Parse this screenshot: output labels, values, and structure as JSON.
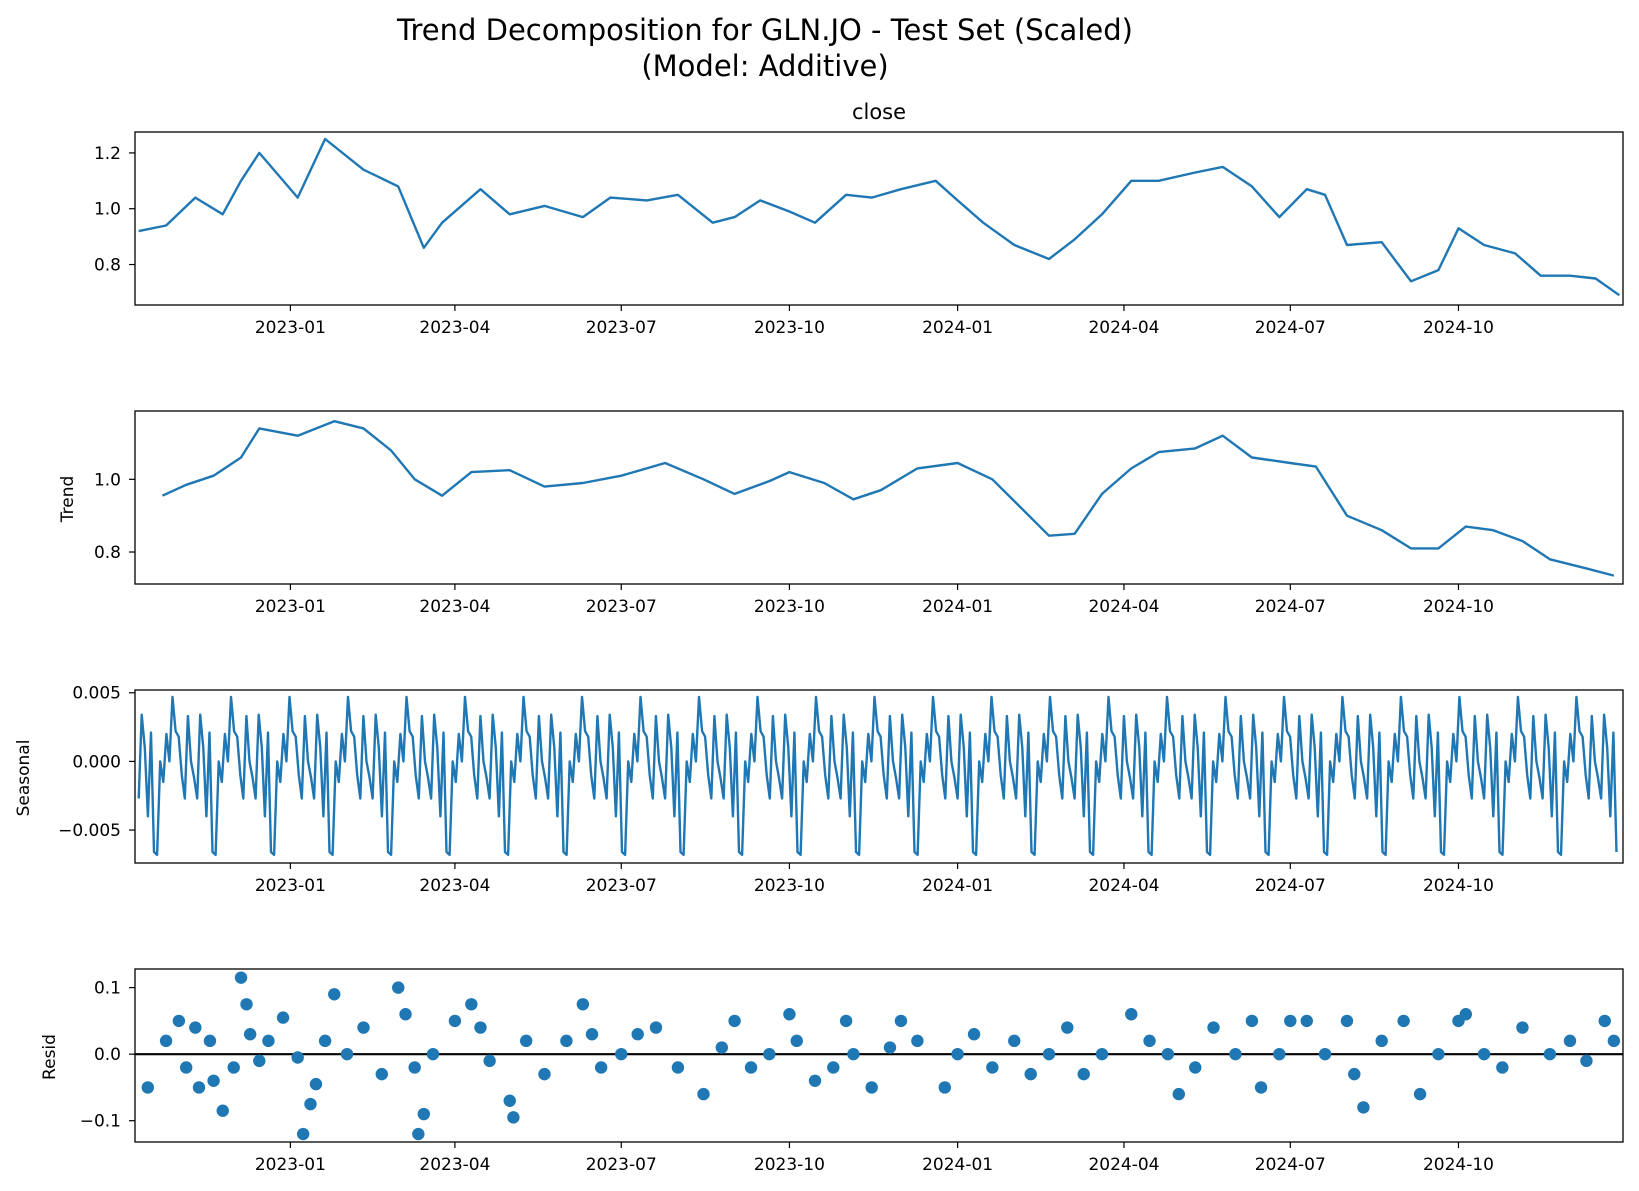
{
  "figure": {
    "title_line1": "Trend Decomposition for GLN.JO - Test Set (Scaled)",
    "title_line2": "(Model: Additive)"
  },
  "colors": {
    "series": "#1f77b4",
    "zero_line": "#000000",
    "axes": "#000000"
  },
  "chart_data": [
    {
      "type": "line",
      "title": "close",
      "ylabel": "",
      "x_range": [
        "2022-10-08",
        "2024-12-30"
      ],
      "x_ticks": [
        "2023-01",
        "2023-04",
        "2023-07",
        "2023-10",
        "2024-01",
        "2024-04",
        "2024-07",
        "2024-10"
      ],
      "ylim": [
        0.655,
        1.275
      ],
      "y_ticks": [
        "0.8",
        "1.0",
        "1.2"
      ],
      "y_tick_values": [
        0.8,
        1.0,
        1.2
      ],
      "series": [
        {
          "x": [
            "2022-10-10",
            "2022-10-25",
            "2022-11-10",
            "2022-11-25",
            "2022-12-05",
            "2022-12-15",
            "2023-01-05",
            "2023-01-20",
            "2023-02-10",
            "2023-03-01",
            "2023-03-15",
            "2023-03-25",
            "2023-04-15",
            "2023-05-01",
            "2023-05-20",
            "2023-06-10",
            "2023-06-25",
            "2023-07-15",
            "2023-08-01",
            "2023-08-20",
            "2023-09-01",
            "2023-09-15",
            "2023-10-01",
            "2023-10-15",
            "2023-11-01",
            "2023-11-15",
            "2023-12-01",
            "2023-12-20",
            "2024-01-01",
            "2024-01-15",
            "2024-02-01",
            "2024-02-20",
            "2024-03-05",
            "2024-03-20",
            "2024-04-05",
            "2024-04-20",
            "2024-05-10",
            "2024-05-25",
            "2024-06-10",
            "2024-06-25",
            "2024-07-10",
            "2024-07-20",
            "2024-08-01",
            "2024-08-20",
            "2024-09-05",
            "2024-09-20",
            "2024-10-01",
            "2024-10-15",
            "2024-11-01",
            "2024-11-15",
            "2024-12-01",
            "2024-12-15",
            "2024-12-28"
          ],
          "y": [
            0.92,
            0.94,
            1.04,
            0.98,
            1.1,
            1.2,
            1.04,
            1.25,
            1.14,
            1.08,
            0.86,
            0.95,
            1.07,
            0.98,
            1.01,
            0.97,
            1.04,
            1.03,
            1.05,
            0.95,
            0.97,
            1.03,
            0.99,
            0.95,
            1.05,
            1.04,
            1.07,
            1.1,
            1.03,
            0.95,
            0.87,
            0.82,
            0.89,
            0.98,
            1.1,
            1.1,
            1.13,
            1.15,
            1.08,
            0.97,
            1.07,
            1.05,
            0.87,
            0.88,
            0.74,
            0.78,
            0.93,
            0.87,
            0.84,
            0.76,
            0.76,
            0.75,
            0.69
          ]
        }
      ]
    },
    {
      "type": "line",
      "title": "",
      "ylabel": "Trend",
      "x_range": [
        "2022-10-08",
        "2024-12-30"
      ],
      "x_ticks": [
        "2023-01",
        "2023-04",
        "2023-07",
        "2023-10",
        "2024-01",
        "2024-04",
        "2024-07",
        "2024-10"
      ],
      "ylim": [
        0.712,
        1.188
      ],
      "y_ticks": [
        "0.8",
        "1.0"
      ],
      "y_tick_values": [
        0.8,
        1.0
      ],
      "series": [
        {
          "x": [
            "2022-10-23",
            "2022-11-05",
            "2022-11-20",
            "2022-12-05",
            "2022-12-15",
            "2023-01-05",
            "2023-01-25",
            "2023-02-10",
            "2023-02-25",
            "2023-03-10",
            "2023-03-25",
            "2023-04-10",
            "2023-05-01",
            "2023-05-20",
            "2023-06-10",
            "2023-07-01",
            "2023-07-25",
            "2023-08-15",
            "2023-09-01",
            "2023-09-20",
            "2023-10-01",
            "2023-10-20",
            "2023-11-05",
            "2023-11-20",
            "2023-12-10",
            "2024-01-01",
            "2024-01-20",
            "2024-02-05",
            "2024-02-20",
            "2024-03-05",
            "2024-03-20",
            "2024-04-05",
            "2024-04-20",
            "2024-05-10",
            "2024-05-25",
            "2024-06-10",
            "2024-07-01",
            "2024-07-15",
            "2024-08-01",
            "2024-08-20",
            "2024-09-05",
            "2024-09-20",
            "2024-10-05",
            "2024-10-20",
            "2024-11-05",
            "2024-11-20",
            "2024-12-10",
            "2024-12-25"
          ],
          "y": [
            0.955,
            0.985,
            1.01,
            1.06,
            1.14,
            1.12,
            1.16,
            1.14,
            1.08,
            1.0,
            0.955,
            1.02,
            1.025,
            0.98,
            0.99,
            1.01,
            1.045,
            1.0,
            0.96,
            0.995,
            1.02,
            0.99,
            0.945,
            0.97,
            1.03,
            1.045,
            1.0,
            0.92,
            0.845,
            0.85,
            0.96,
            1.03,
            1.075,
            1.085,
            1.12,
            1.06,
            1.045,
            1.035,
            0.9,
            0.86,
            0.81,
            0.81,
            0.87,
            0.86,
            0.83,
            0.78,
            0.755,
            0.735
          ]
        }
      ]
    },
    {
      "type": "line",
      "title": "",
      "ylabel": "Seasonal",
      "x_range": [
        "2022-10-08",
        "2024-12-30"
      ],
      "x_ticks": [
        "2023-01",
        "2023-04",
        "2023-07",
        "2023-10",
        "2024-01",
        "2024-04",
        "2024-07",
        "2024-10"
      ],
      "ylim": [
        -0.0074,
        0.0052
      ],
      "y_ticks": [
        "0.005",
        "0.000",
        "−0.005"
      ],
      "y_tick_values": [
        0.005,
        0.0,
        -0.005
      ],
      "pattern": {
        "start": "2022-10-10",
        "end": "2024-12-28",
        "period_days": 32,
        "cycle_values": [
          -0.0027,
          0.0034,
          0.001,
          -0.004,
          0.0021,
          -0.0066,
          -0.0068,
          0.0,
          -0.0015,
          0.002,
          0.0,
          0.0047,
          0.0022,
          0.0018,
          -0.001,
          -0.0027,
          0.0033,
          0.0,
          -0.0012
        ]
      }
    },
    {
      "type": "scatter",
      "title": "",
      "ylabel": "Resid",
      "x_range": [
        "2022-10-08",
        "2024-12-30"
      ],
      "x_ticks": [
        "2023-01",
        "2023-04",
        "2023-07",
        "2023-10",
        "2024-01",
        "2024-04",
        "2024-07",
        "2024-10"
      ],
      "ylim": [
        -0.132,
        0.128
      ],
      "y_ticks": [
        "0.1",
        "0.0",
        "−0.1"
      ],
      "y_tick_values": [
        0.1,
        0.0,
        -0.1
      ],
      "zero_line": 0.0,
      "series": [
        {
          "x": [
            "2022-10-15",
            "2022-10-25",
            "2022-11-01",
            "2022-11-05",
            "2022-11-10",
            "2022-11-12",
            "2022-11-18",
            "2022-11-20",
            "2022-11-25",
            "2022-12-01",
            "2022-12-05",
            "2022-12-08",
            "2022-12-10",
            "2022-12-15",
            "2022-12-20",
            "2022-12-28",
            "2023-01-05",
            "2023-01-08",
            "2023-01-12",
            "2023-01-15",
            "2023-01-20",
            "2023-01-25",
            "2023-02-01",
            "2023-02-10",
            "2023-02-20",
            "2023-03-01",
            "2023-03-05",
            "2023-03-10",
            "2023-03-12",
            "2023-03-15",
            "2023-03-20",
            "2023-04-01",
            "2023-04-10",
            "2023-04-15",
            "2023-04-20",
            "2023-05-01",
            "2023-05-03",
            "2023-05-10",
            "2023-05-20",
            "2023-06-01",
            "2023-06-10",
            "2023-06-15",
            "2023-06-20",
            "2023-07-01",
            "2023-07-10",
            "2023-07-20",
            "2023-08-01",
            "2023-08-15",
            "2023-08-25",
            "2023-09-01",
            "2023-09-10",
            "2023-09-20",
            "2023-10-01",
            "2023-10-05",
            "2023-10-15",
            "2023-10-25",
            "2023-11-01",
            "2023-11-05",
            "2023-11-15",
            "2023-11-25",
            "2023-12-01",
            "2023-12-10",
            "2023-12-25",
            "2024-01-01",
            "2024-01-10",
            "2024-01-20",
            "2024-02-01",
            "2024-02-10",
            "2024-02-20",
            "2024-03-01",
            "2024-03-10",
            "2024-03-20",
            "2024-04-05",
            "2024-04-15",
            "2024-04-25",
            "2024-05-01",
            "2024-05-10",
            "2024-05-20",
            "2024-06-01",
            "2024-06-10",
            "2024-06-15",
            "2024-06-25",
            "2024-07-01",
            "2024-07-10",
            "2024-07-20",
            "2024-08-01",
            "2024-08-05",
            "2024-08-10",
            "2024-08-20",
            "2024-09-01",
            "2024-09-10",
            "2024-09-20",
            "2024-10-01",
            "2024-10-05",
            "2024-10-15",
            "2024-10-25",
            "2024-11-05",
            "2024-11-20",
            "2024-12-01",
            "2024-12-10",
            "2024-12-20",
            "2024-12-25"
          ],
          "y": [
            -0.05,
            0.02,
            0.05,
            -0.02,
            0.04,
            -0.05,
            0.02,
            -0.04,
            -0.085,
            -0.02,
            0.115,
            0.075,
            0.03,
            -0.01,
            0.02,
            0.055,
            -0.005,
            -0.12,
            -0.075,
            -0.045,
            0.02,
            0.09,
            0.0,
            0.04,
            -0.03,
            0.1,
            0.06,
            -0.02,
            -0.12,
            -0.09,
            0.0,
            0.05,
            0.075,
            0.04,
            -0.01,
            -0.07,
            -0.095,
            0.02,
            -0.03,
            0.02,
            0.075,
            0.03,
            -0.02,
            0.0,
            0.03,
            0.04,
            -0.02,
            -0.06,
            0.01,
            0.05,
            -0.02,
            0.0,
            0.06,
            0.02,
            -0.04,
            -0.02,
            0.05,
            0.0,
            -0.05,
            0.01,
            0.05,
            0.02,
            -0.05,
            0.0,
            0.03,
            -0.02,
            0.02,
            -0.03,
            0.0,
            0.04,
            -0.03,
            0.0,
            0.06,
            0.02,
            0.0,
            -0.06,
            -0.02,
            0.04,
            0.0,
            0.05,
            -0.05,
            0.0,
            0.05,
            0.05,
            0.0,
            0.05,
            -0.03,
            -0.08,
            0.02,
            0.05,
            -0.06,
            0.0,
            0.05,
            0.06,
            0.0,
            -0.02,
            0.04,
            0.0,
            0.02,
            -0.01,
            0.05,
            0.02
          ]
        }
      ]
    }
  ]
}
